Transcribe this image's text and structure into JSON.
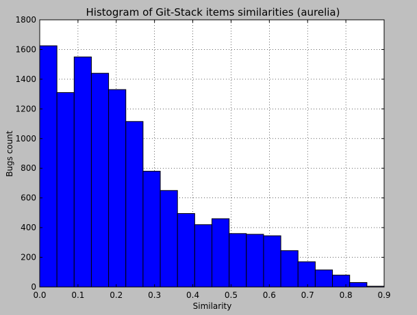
{
  "chart_data": {
    "type": "bar",
    "title": "Histogram of Git-Stack items similarities (aurelia)",
    "xlabel": "Similarity",
    "ylabel": "Bugs count",
    "xlim": [
      0,
      0.9
    ],
    "ylim": [
      0,
      1800
    ],
    "xticks": [
      "0.0",
      "0.1",
      "0.2",
      "0.3",
      "0.4",
      "0.5",
      "0.6",
      "0.7",
      "0.8",
      "0.9"
    ],
    "yticks": [
      "0",
      "200",
      "400",
      "600",
      "800",
      "1000",
      "1200",
      "1400",
      "1600",
      "1800"
    ],
    "grid": true,
    "bar_color": "#0000ff",
    "bin_edges": [
      0.0,
      0.045,
      0.09,
      0.135,
      0.18,
      0.225,
      0.27,
      0.315,
      0.36,
      0.405,
      0.45,
      0.495,
      0.54,
      0.585,
      0.63,
      0.675,
      0.72,
      0.765,
      0.81,
      0.855,
      0.9
    ],
    "values": [
      1625,
      1310,
      1550,
      1440,
      1330,
      1115,
      780,
      650,
      495,
      420,
      460,
      360,
      355,
      345,
      245,
      170,
      115,
      80,
      30,
      5
    ]
  }
}
